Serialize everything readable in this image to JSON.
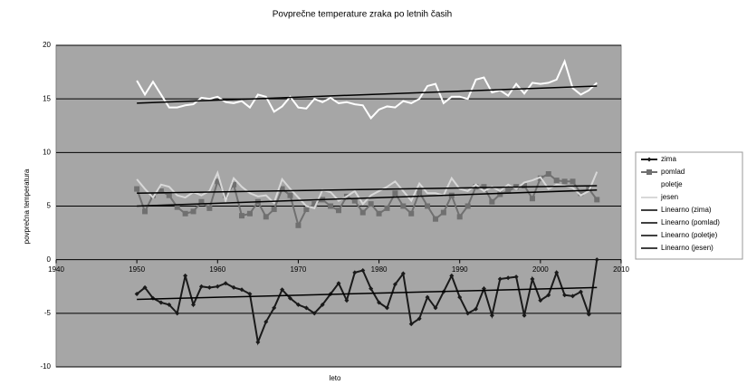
{
  "chart_data": {
    "type": "line",
    "title": "Povprečne temperature zraka po letnih časih",
    "x_label": "leto",
    "y_label": "povprečna temperatura",
    "x": [
      1950,
      1951,
      1952,
      1953,
      1954,
      1955,
      1956,
      1957,
      1958,
      1959,
      1960,
      1961,
      1962,
      1963,
      1964,
      1965,
      1966,
      1967,
      1968,
      1969,
      1970,
      1971,
      1972,
      1973,
      1974,
      1975,
      1976,
      1977,
      1978,
      1979,
      1980,
      1981,
      1982,
      1983,
      1984,
      1985,
      1986,
      1987,
      1988,
      1989,
      1990,
      1991,
      1992,
      1993,
      1994,
      1995,
      1996,
      1997,
      1998,
      1999,
      2000,
      2001,
      2002,
      2003,
      2004,
      2005,
      2006,
      2007
    ],
    "series": [
      {
        "name": "zima",
        "color": "#1a1a1a",
        "marker": "diamond",
        "values": [
          -3.2,
          -2.6,
          -3.6,
          -4.0,
          -4.2,
          -5.0,
          -1.5,
          -4.2,
          -2.5,
          -2.6,
          -2.5,
          -2.2,
          -2.6,
          -2.8,
          -3.2,
          -7.7,
          -5.8,
          -4.5,
          -2.8,
          -3.6,
          -4.2,
          -4.5,
          -5.0,
          -4.2,
          -3.2,
          -2.2,
          -3.8,
          -1.2,
          -1.0,
          -2.7,
          -4.0,
          -4.5,
          -2.3,
          -1.3,
          -6.0,
          -5.5,
          -3.5,
          -4.5,
          -3.0,
          -1.5,
          -3.5,
          -5.0,
          -4.6,
          -2.7,
          -5.2,
          -1.8,
          -1.7,
          -1.6,
          -5.2,
          -1.8,
          -3.8,
          -3.3,
          -1.2,
          -3.3,
          -3.4,
          -3.0,
          -5.1,
          0.0
        ]
      },
      {
        "name": "pomlad",
        "color": "#707070",
        "marker": "square",
        "values": [
          6.6,
          4.5,
          6.0,
          6.4,
          6.0,
          4.9,
          4.3,
          4.5,
          5.4,
          4.8,
          7.3,
          6.0,
          7.0,
          4.1,
          4.3,
          5.4,
          4.0,
          4.7,
          6.6,
          6.0,
          3.2,
          4.7,
          5.2,
          5.6,
          5.0,
          4.6,
          5.9,
          5.5,
          4.4,
          5.2,
          4.3,
          4.8,
          6.2,
          5.0,
          4.3,
          6.3,
          5.0,
          3.8,
          4.4,
          6.0,
          4.0,
          5.0,
          6.8,
          6.8,
          5.4,
          6.1,
          6.4,
          6.8,
          6.9,
          5.7,
          7.6,
          8.0,
          7.4,
          7.3,
          7.3,
          6.2,
          6.6,
          5.6
        ]
      },
      {
        "name": "poletje",
        "color": "#ffffff",
        "marker": "none",
        "values": [
          16.7,
          15.4,
          16.6,
          15.4,
          14.2,
          14.2,
          14.4,
          14.5,
          15.1,
          15.0,
          15.2,
          14.7,
          14.6,
          14.8,
          14.2,
          15.4,
          15.2,
          13.8,
          14.3,
          15.2,
          14.2,
          14.1,
          15.0,
          14.7,
          15.1,
          14.6,
          14.7,
          14.5,
          14.4,
          13.2,
          14.0,
          14.3,
          14.2,
          14.8,
          14.6,
          15.0,
          16.2,
          16.4,
          14.6,
          15.2,
          15.2,
          15.0,
          16.8,
          17.0,
          15.6,
          15.8,
          15.3,
          16.4,
          15.5,
          16.5,
          16.4,
          16.5,
          16.8,
          18.5,
          16.0,
          15.4,
          15.8,
          16.5
        ]
      },
      {
        "name": "jesen",
        "color": "#d8d8d8",
        "marker": "none",
        "values": [
          7.5,
          6.6,
          5.8,
          7.0,
          6.8,
          6.0,
          5.8,
          6.3,
          6.0,
          6.4,
          8.1,
          5.5,
          7.6,
          6.8,
          6.2,
          5.9,
          6.0,
          5.3,
          7.5,
          6.6,
          5.8,
          5.0,
          4.8,
          6.5,
          6.3,
          5.5,
          5.9,
          6.4,
          5.2,
          6.0,
          6.4,
          6.8,
          7.3,
          6.4,
          5.5,
          7.1,
          6.2,
          6.2,
          6.0,
          7.6,
          6.6,
          6.4,
          7.0,
          6.4,
          6.8,
          6.4,
          7.0,
          6.6,
          7.2,
          7.4,
          7.7,
          6.6,
          7.0,
          6.9,
          6.7,
          6.0,
          6.4,
          8.2
        ]
      }
    ],
    "trendlines": [
      {
        "name": "Linearno (zima)",
        "color": "#000000",
        "x": [
          1950,
          2007
        ],
        "values": [
          -3.7,
          -2.6
        ]
      },
      {
        "name": "Linearno (pomlad)",
        "color": "#000000",
        "x": [
          1950,
          2007
        ],
        "values": [
          5.0,
          6.5
        ]
      },
      {
        "name": "Linearno (poletje)",
        "color": "#000000",
        "x": [
          1950,
          2007
        ],
        "values": [
          14.6,
          16.2
        ]
      },
      {
        "name": "Linearno (jesen)",
        "color": "#000000",
        "x": [
          1950,
          2007
        ],
        "values": [
          6.2,
          6.9
        ]
      }
    ],
    "xlim": [
      1940,
      2010
    ],
    "xticks": [
      1940,
      1950,
      1960,
      1970,
      1980,
      1990,
      2000,
      2010
    ],
    "ylim": [
      -10,
      20
    ],
    "yticks": [
      -10,
      -5,
      0,
      5,
      10,
      15,
      20
    ],
    "grid": true,
    "legend": "right"
  }
}
